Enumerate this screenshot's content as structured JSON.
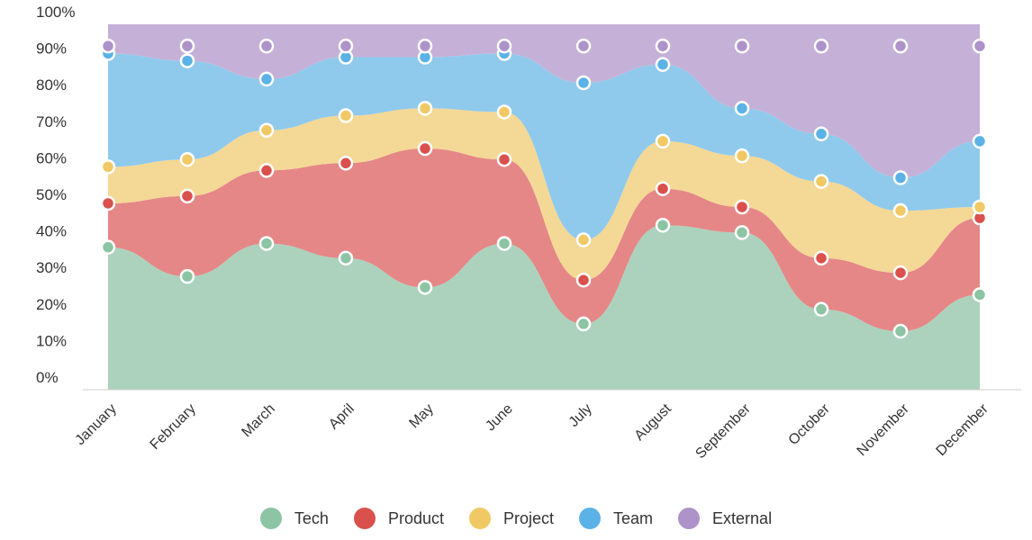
{
  "chart_data": {
    "type": "area",
    "stacked": true,
    "percent": true,
    "categories": [
      "January",
      "February",
      "March",
      "April",
      "May",
      "June",
      "July",
      "August",
      "September",
      "October",
      "November",
      "December"
    ],
    "series": [
      {
        "name": "Tech",
        "color": "#8dc4a4",
        "fill": "#acd2bd",
        "values": [
          39,
          31,
          40,
          36,
          28,
          40,
          18,
          45,
          43,
          22,
          16,
          26
        ]
      },
      {
        "name": "Product",
        "color": "#d9504d",
        "fill": "#e58787",
        "values": [
          12,
          22,
          20,
          26,
          38,
          23,
          12,
          10,
          7,
          14,
          16,
          21
        ]
      },
      {
        "name": "Project",
        "color": "#f0c965",
        "fill": "#f4d896",
        "values": [
          10,
          10,
          11,
          13,
          11,
          13,
          11,
          13,
          14,
          21,
          17,
          3
        ]
      },
      {
        "name": "Team",
        "color": "#5ab2e6",
        "fill": "#8fcaec",
        "values": [
          31,
          27,
          14,
          16,
          14,
          16,
          43,
          21,
          13,
          13,
          9,
          18
        ]
      },
      {
        "name": "External",
        "color": "#ad93ca",
        "fill": "#c5b1d7",
        "values": [
          5,
          7,
          12,
          6,
          6,
          5,
          13,
          8,
          20,
          27,
          39,
          29
        ]
      }
    ],
    "y_ticks": [
      "0%",
      "10%",
      "20%",
      "30%",
      "40%",
      "50%",
      "60%",
      "70%",
      "80%",
      "90%",
      "100%"
    ],
    "ylim": [
      0,
      100
    ],
    "grid": false,
    "legend_position": "bottom"
  }
}
